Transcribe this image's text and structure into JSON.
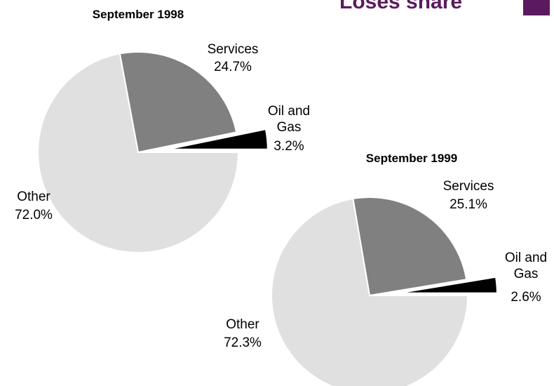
{
  "header": {
    "title": "Loses share"
  },
  "chart_data": [
    {
      "type": "pie",
      "title": "September 1998",
      "categories": [
        "Oil and Gas",
        "Services",
        "Other"
      ],
      "values": [
        3.2,
        24.7,
        72.0
      ],
      "value_labels": [
        "3.2%",
        "24.7%",
        "72.0%"
      ],
      "colors": [
        "#000000",
        "#808080",
        "#e0e0e0"
      ]
    },
    {
      "type": "pie",
      "title": "September 1999",
      "categories": [
        "Oil and Gas",
        "Services",
        "Other"
      ],
      "values": [
        2.6,
        25.1,
        72.3
      ],
      "value_labels": [
        "2.6%",
        "25.1%",
        "72.3%"
      ],
      "colors": [
        "#000000",
        "#808080",
        "#e0e0e0"
      ]
    }
  ]
}
